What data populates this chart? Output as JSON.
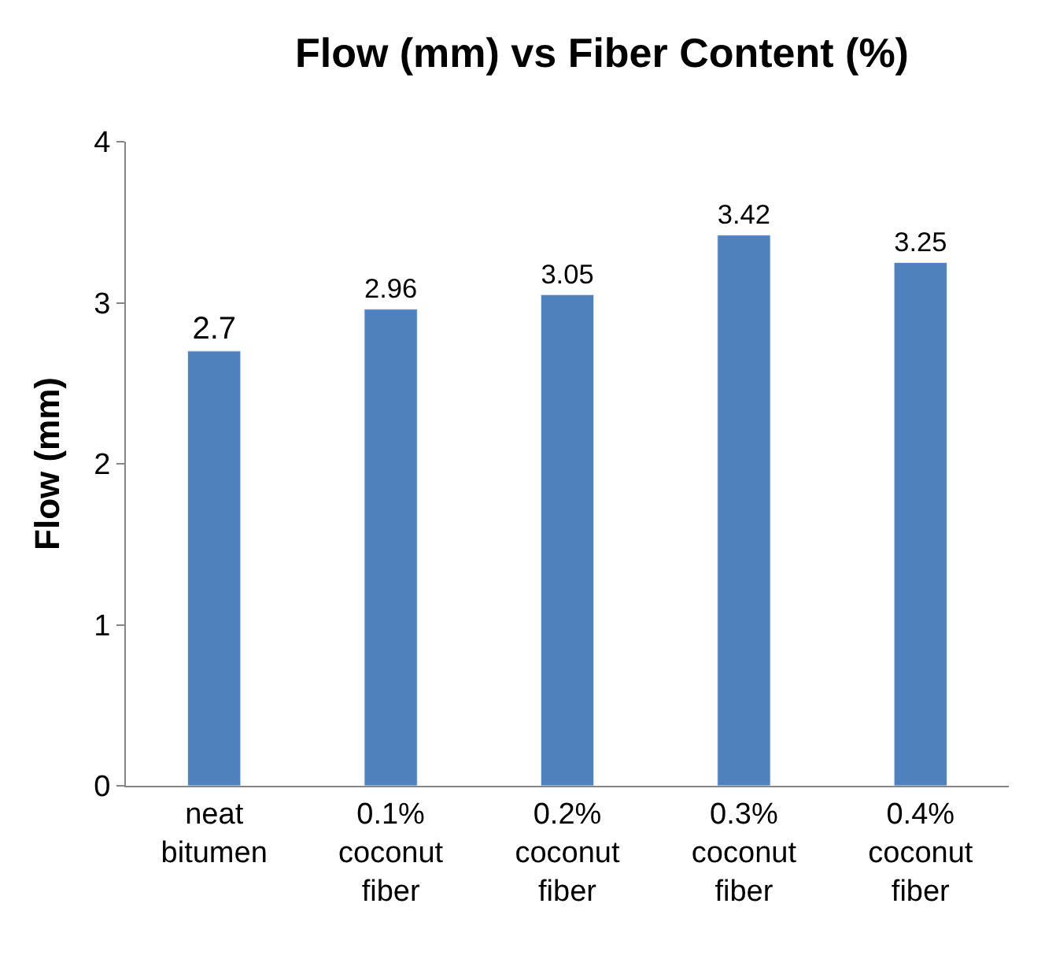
{
  "chart_data": {
    "type": "bar",
    "title": "Flow (mm) vs Fiber Content (%)",
    "ylabel": "Flow (mm)",
    "categories": [
      "neat bitumen",
      "0.1% coconut fiber",
      "0.2% coconut fiber",
      "0.3% coconut fiber",
      "0.4% coconut fiber"
    ],
    "values": [
      2.7,
      2.96,
      3.05,
      3.42,
      3.25
    ],
    "color": "#4f81bd",
    "ylim": [
      0,
      4
    ],
    "yticks": [
      0,
      1,
      2,
      3,
      4
    ],
    "legend": false,
    "data_labels": true
  }
}
